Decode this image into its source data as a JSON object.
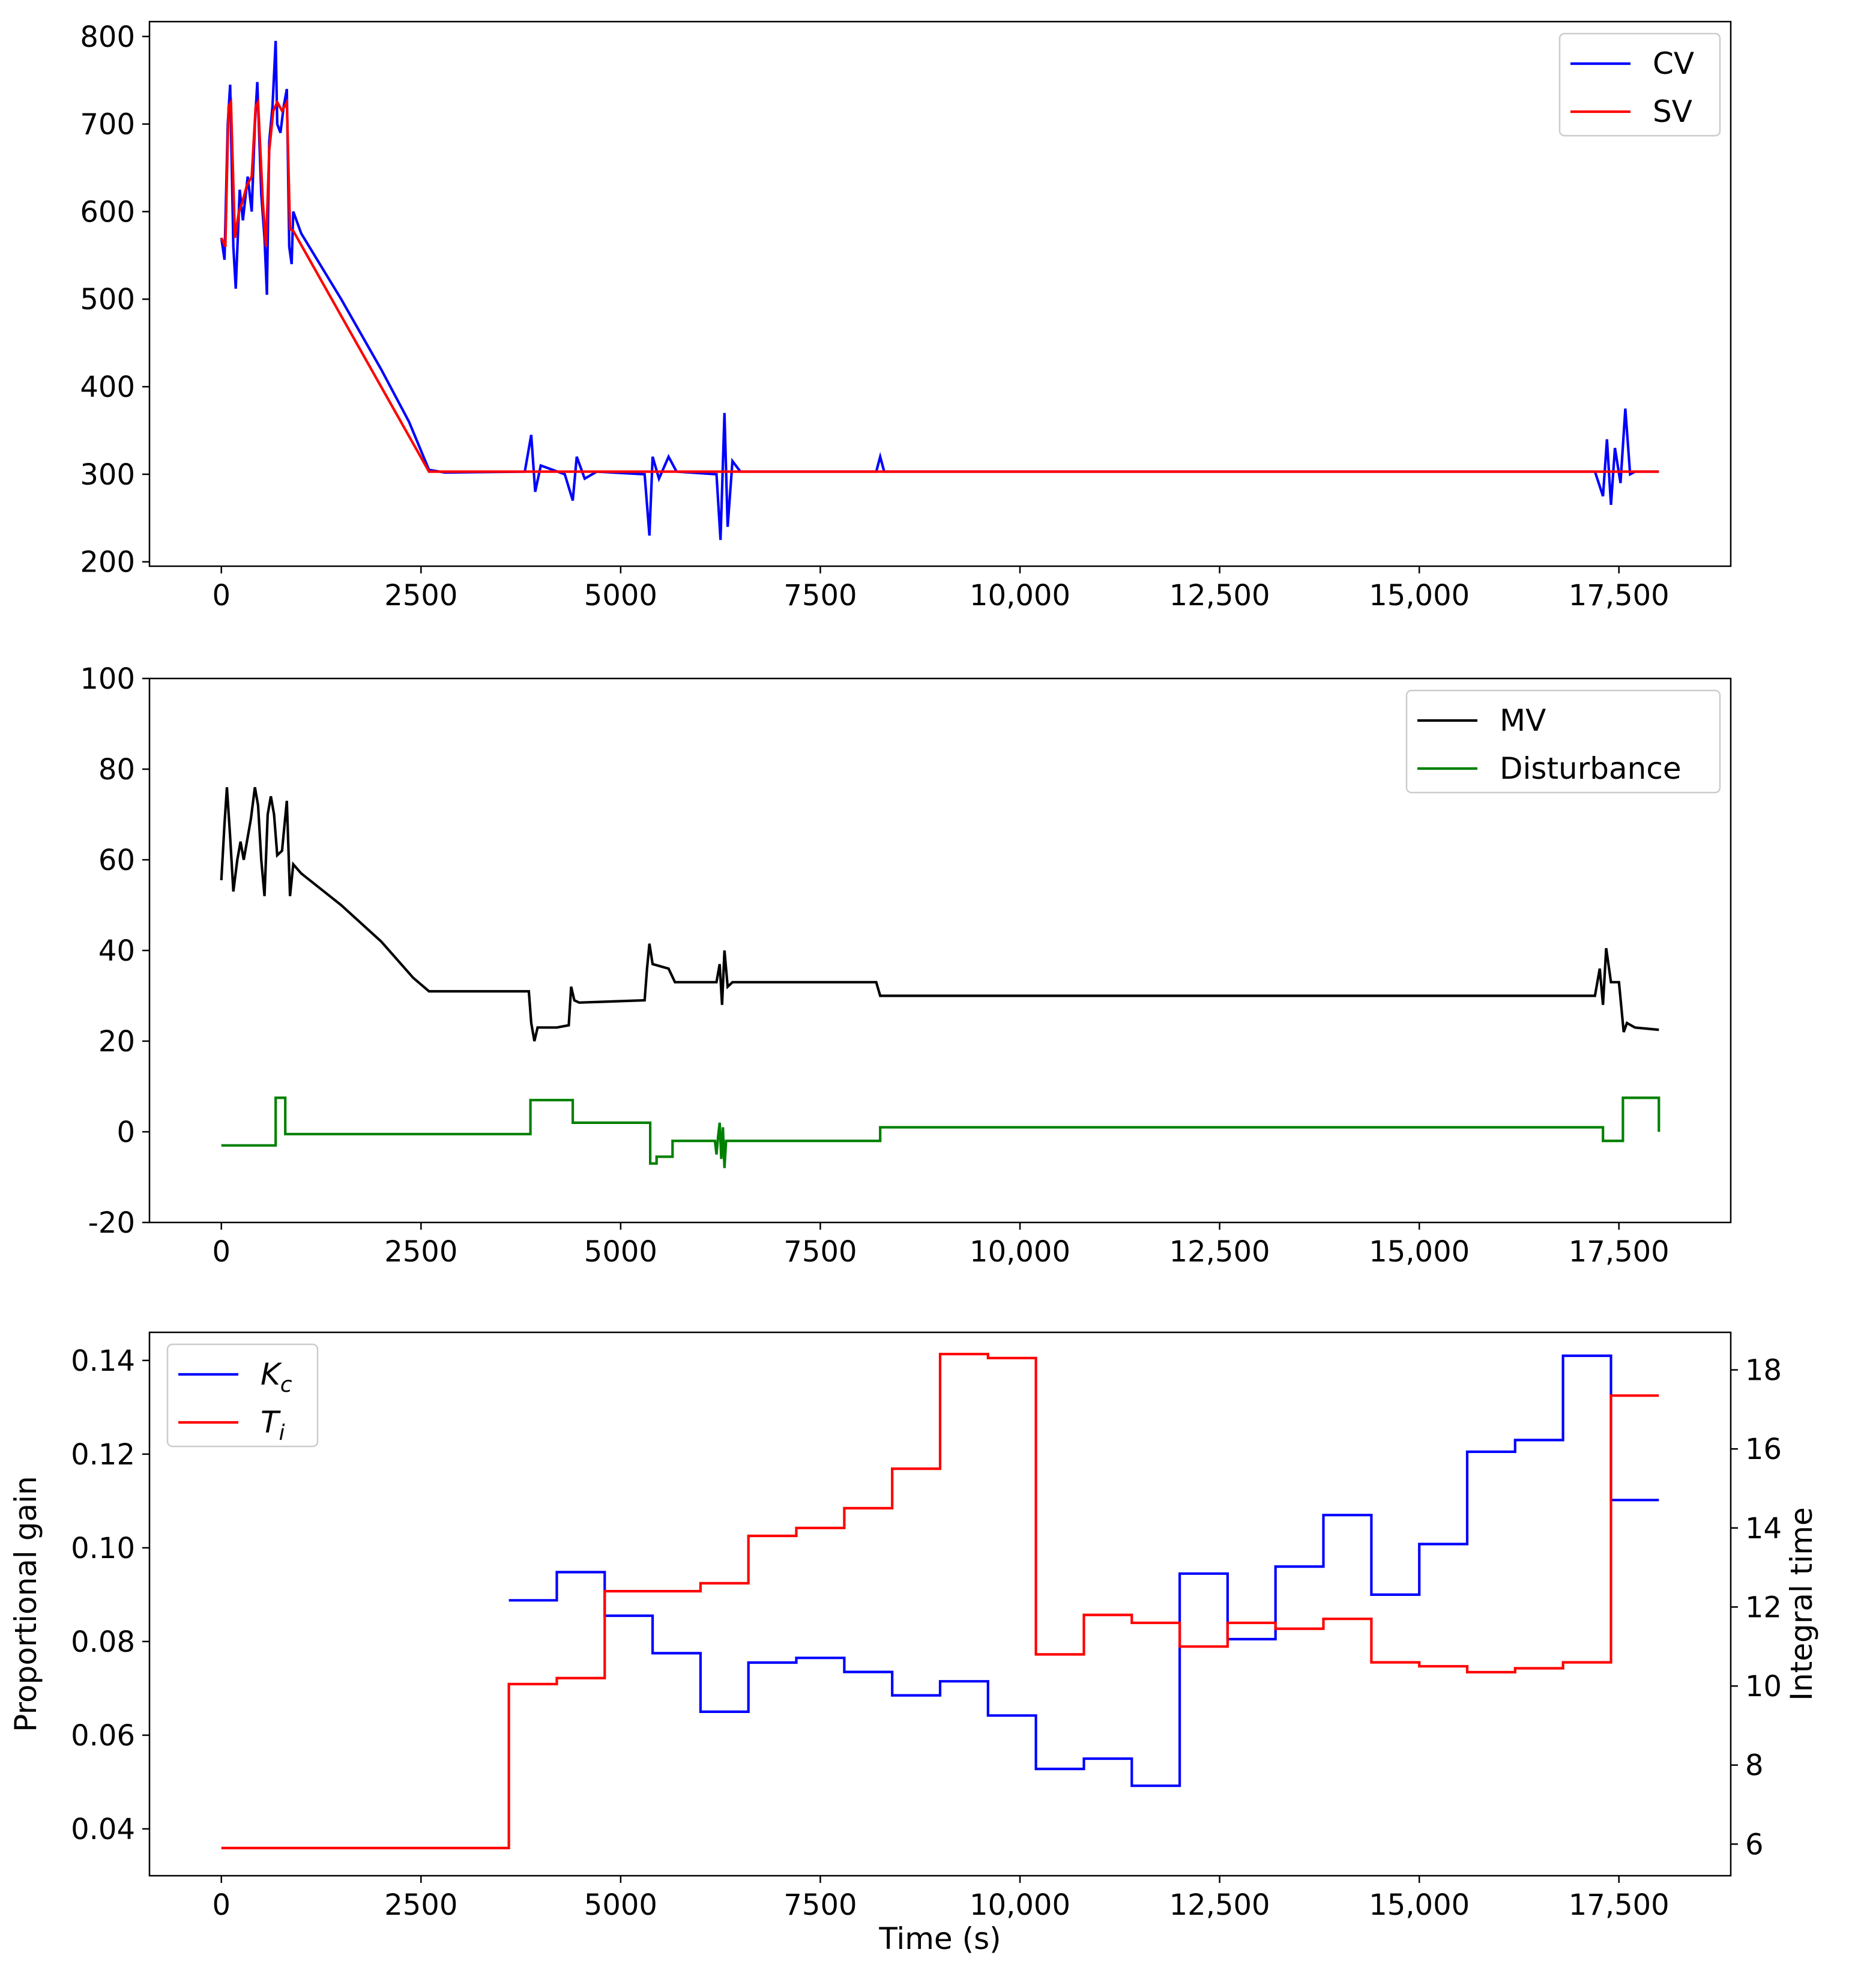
{
  "chart_data": [
    {
      "type": "line",
      "title": "",
      "xlabel": "",
      "ylabel": "",
      "xlim": [
        -900,
        18900
      ],
      "ylim": [
        195,
        817
      ],
      "x_ticks": [
        0,
        2500,
        5000,
        7500,
        10000,
        12500,
        15000,
        17500
      ],
      "x_tick_labels": [
        "0",
        "2500",
        "5000",
        "7500",
        "10,000",
        "12,500",
        "15,000",
        "17,500"
      ],
      "y_ticks": [
        200,
        300,
        400,
        500,
        600,
        700,
        800
      ],
      "y_tick_labels": [
        "200",
        "300",
        "400",
        "500",
        "600",
        "700",
        "800"
      ],
      "legend_position": "top-right",
      "series": [
        {
          "name": "CV",
          "color": "#0000ff",
          "points": [
            [
              0,
              570
            ],
            [
              40,
              545
            ],
            [
              80,
              700
            ],
            [
              110,
              745
            ],
            [
              150,
              560
            ],
            [
              180,
              512
            ],
            [
              230,
              625
            ],
            [
              270,
              590
            ],
            [
              330,
              640
            ],
            [
              380,
              600
            ],
            [
              420,
              700
            ],
            [
              450,
              748
            ],
            [
              500,
              620
            ],
            [
              540,
              570
            ],
            [
              570,
              505
            ],
            [
              600,
              680
            ],
            [
              640,
              720
            ],
            [
              680,
              795
            ],
            [
              700,
              700
            ],
            [
              740,
              690
            ],
            [
              780,
              720
            ],
            [
              820,
              740
            ],
            [
              850,
              560
            ],
            [
              880,
              540
            ],
            [
              900,
              600
            ],
            [
              1000,
              575
            ],
            [
              1500,
              500
            ],
            [
              2000,
              420
            ],
            [
              2350,
              360
            ],
            [
              2600,
              305
            ],
            [
              2800,
              302
            ],
            [
              3800,
              303
            ],
            [
              3880,
              345
            ],
            [
              3930,
              280
            ],
            [
              4000,
              310
            ],
            [
              4300,
              300
            ],
            [
              4400,
              270
            ],
            [
              4450,
              320
            ],
            [
              4550,
              295
            ],
            [
              4700,
              303
            ],
            [
              5300,
              300
            ],
            [
              5360,
              230
            ],
            [
              5400,
              320
            ],
            [
              5480,
              295
            ],
            [
              5600,
              320
            ],
            [
              5700,
              303
            ],
            [
              6200,
              300
            ],
            [
              6250,
              225
            ],
            [
              6300,
              370
            ],
            [
              6340,
              240
            ],
            [
              6400,
              315
            ],
            [
              6500,
              303
            ],
            [
              8200,
              303
            ],
            [
              8250,
              320
            ],
            [
              8300,
              303
            ],
            [
              17200,
              303
            ],
            [
              17300,
              275
            ],
            [
              17350,
              340
            ],
            [
              17400,
              265
            ],
            [
              17450,
              330
            ],
            [
              17520,
              290
            ],
            [
              17580,
              375
            ],
            [
              17640,
              300
            ],
            [
              17700,
              303
            ],
            [
              18000,
              303
            ]
          ]
        },
        {
          "name": "SV",
          "color": "#ff0000",
          "points": [
            [
              0,
              570
            ],
            [
              50,
              560
            ],
            [
              90,
              720
            ],
            [
              120,
              725
            ],
            [
              170,
              570
            ],
            [
              220,
              600
            ],
            [
              260,
              610
            ],
            [
              320,
              630
            ],
            [
              380,
              640
            ],
            [
              430,
              720
            ],
            [
              460,
              725
            ],
            [
              520,
              610
            ],
            [
              560,
              560
            ],
            [
              600,
              670
            ],
            [
              650,
              715
            ],
            [
              700,
              725
            ],
            [
              760,
              715
            ],
            [
              820,
              725
            ],
            [
              860,
              580
            ],
            [
              900,
              578
            ],
            [
              2600,
              303
            ],
            [
              18000,
              303
            ]
          ]
        }
      ]
    },
    {
      "type": "line",
      "title": "",
      "xlabel": "",
      "ylabel": "",
      "xlim": [
        -900,
        18900
      ],
      "ylim": [
        -20,
        100
      ],
      "x_ticks": [
        0,
        2500,
        5000,
        7500,
        10000,
        12500,
        15000,
        17500
      ],
      "x_tick_labels": [
        "0",
        "2500",
        "5000",
        "7500",
        "10,000",
        "12,500",
        "15,000",
        "17,500"
      ],
      "y_ticks": [
        -20,
        0,
        20,
        40,
        60,
        80,
        100
      ],
      "y_tick_labels": [
        "-20",
        "0",
        "20",
        "40",
        "60",
        "80",
        "100"
      ],
      "legend_position": "top-right",
      "series": [
        {
          "name": "MV",
          "color": "#000000",
          "points": [
            [
              0,
              55.5
            ],
            [
              40,
              68
            ],
            [
              70,
              76
            ],
            [
              110,
              65
            ],
            [
              150,
              53
            ],
            [
              200,
              60
            ],
            [
              240,
              64
            ],
            [
              280,
              60
            ],
            [
              320,
              64
            ],
            [
              370,
              69
            ],
            [
              420,
              76
            ],
            [
              460,
              72
            ],
            [
              500,
              60
            ],
            [
              540,
              52
            ],
            [
              580,
              70
            ],
            [
              620,
              74
            ],
            [
              660,
              70
            ],
            [
              700,
              61
            ],
            [
              760,
              62
            ],
            [
              820,
              73
            ],
            [
              860,
              52
            ],
            [
              900,
              59
            ],
            [
              1000,
              57
            ],
            [
              1500,
              50
            ],
            [
              2000,
              42
            ],
            [
              2400,
              34
            ],
            [
              2600,
              31
            ],
            [
              3850,
              31
            ],
            [
              3880,
              24
            ],
            [
              3920,
              20
            ],
            [
              3960,
              23
            ],
            [
              4000,
              23
            ],
            [
              4200,
              23
            ],
            [
              4350,
              23.5
            ],
            [
              4380,
              32
            ],
            [
              4420,
              29
            ],
            [
              4480,
              28.5
            ],
            [
              5300,
              29
            ],
            [
              5330,
              36
            ],
            [
              5360,
              41.5
            ],
            [
              5400,
              37
            ],
            [
              5600,
              36
            ],
            [
              5680,
              33
            ],
            [
              6000,
              33
            ],
            [
              6200,
              33
            ],
            [
              6240,
              37
            ],
            [
              6270,
              28
            ],
            [
              6300,
              40
            ],
            [
              6340,
              32
            ],
            [
              6400,
              33
            ],
            [
              8200,
              33
            ],
            [
              8250,
              30
            ],
            [
              17200,
              30
            ],
            [
              17260,
              36
            ],
            [
              17300,
              28
            ],
            [
              17340,
              40.5
            ],
            [
              17400,
              33
            ],
            [
              17500,
              33
            ],
            [
              17560,
              22
            ],
            [
              17600,
              24
            ],
            [
              17700,
              23
            ],
            [
              18000,
              22.5
            ]
          ]
        },
        {
          "name": "Disturbance",
          "color": "#008000",
          "points": [
            [
              0,
              -3
            ],
            [
              680,
              -3
            ],
            [
              680,
              7.5
            ],
            [
              800,
              7.5
            ],
            [
              800,
              -0.5
            ],
            [
              3870,
              -0.5
            ],
            [
              3870,
              7
            ],
            [
              4400,
              7
            ],
            [
              4400,
              2
            ],
            [
              5370,
              2
            ],
            [
              5370,
              -7
            ],
            [
              5450,
              -7
            ],
            [
              5450,
              -5.5
            ],
            [
              5650,
              -5.5
            ],
            [
              5650,
              -2
            ],
            [
              6180,
              -2
            ],
            [
              6200,
              -5
            ],
            [
              6220,
              -1
            ],
            [
              6240,
              2
            ],
            [
              6260,
              -6
            ],
            [
              6280,
              1
            ],
            [
              6300,
              -8
            ],
            [
              6320,
              -2
            ],
            [
              8250,
              -2
            ],
            [
              8250,
              1
            ],
            [
              17300,
              1
            ],
            [
              17300,
              -2
            ],
            [
              17550,
              -2
            ],
            [
              17550,
              7.5
            ],
            [
              18000,
              7.5
            ],
            [
              18000,
              0
            ]
          ]
        }
      ]
    },
    {
      "type": "line",
      "title": "",
      "xlabel": "Time (s)",
      "ylabel": "Proportional gain",
      "y2label": "Integral time",
      "xlim": [
        -900,
        18900
      ],
      "ylim": [
        0.03,
        0.146
      ],
      "y2lim": [
        5.2,
        18.95
      ],
      "x_ticks": [
        0,
        2500,
        5000,
        7500,
        10000,
        12500,
        15000,
        17500
      ],
      "x_tick_labels": [
        "0",
        "2500",
        "5000",
        "7500",
        "10,000",
        "12,500",
        "15,000",
        "17,500"
      ],
      "y_ticks": [
        0.04,
        0.06,
        0.08,
        0.1,
        0.12,
        0.14
      ],
      "y_tick_labels": [
        "0.04",
        "0.06",
        "0.08",
        "0.10",
        "0.12",
        "0.14"
      ],
      "y2_ticks": [
        6,
        8,
        10,
        12,
        14,
        16,
        18
      ],
      "y2_tick_labels": [
        "6",
        "8",
        "10",
        "12",
        "14",
        "16",
        "18"
      ],
      "legend_position": "top-left",
      "series": [
        {
          "name": "Kc",
          "legend_base": "K",
          "legend_sub": "c",
          "axis": "left",
          "color": "#0000ff",
          "steps": [
            [
              3600,
              4200,
              0.0888
            ],
            [
              4200,
              4800,
              0.0948
            ],
            [
              4800,
              5400,
              0.0855
            ],
            [
              5400,
              6000,
              0.0775
            ],
            [
              6000,
              6600,
              0.065
            ],
            [
              6600,
              7200,
              0.0755
            ],
            [
              7200,
              7800,
              0.0765
            ],
            [
              7800,
              8400,
              0.0735
            ],
            [
              8400,
              9000,
              0.0685
            ],
            [
              9000,
              9600,
              0.0715
            ],
            [
              9600,
              10200,
              0.0642
            ],
            [
              10200,
              10800,
              0.0528
            ],
            [
              10800,
              11400,
              0.055
            ],
            [
              11400,
              12000,
              0.0492
            ],
            [
              12000,
              12600,
              0.0945
            ],
            [
              12600,
              13200,
              0.0805
            ],
            [
              13200,
              13800,
              0.096
            ],
            [
              13800,
              14400,
              0.107
            ],
            [
              14400,
              15000,
              0.09
            ],
            [
              15000,
              15600,
              0.1008
            ],
            [
              15600,
              16200,
              0.1205
            ],
            [
              16200,
              16800,
              0.123
            ],
            [
              16800,
              17400,
              0.141
            ],
            [
              17400,
              18000,
              0.1102
            ]
          ]
        },
        {
          "name": "Ti",
          "legend_base": "T",
          "legend_sub": "i",
          "axis": "right",
          "color": "#ff0000",
          "steps": [
            [
              0,
              3600,
              5.9
            ],
            [
              3600,
              4200,
              10.05
            ],
            [
              4200,
              4800,
              10.2
            ],
            [
              4800,
              5400,
              12.4
            ],
            [
              5400,
              6000,
              12.4
            ],
            [
              6000,
              6600,
              12.6
            ],
            [
              6600,
              7200,
              13.8
            ],
            [
              7200,
              7800,
              14.0
            ],
            [
              7800,
              8400,
              14.5
            ],
            [
              8400,
              9000,
              15.5
            ],
            [
              9000,
              9600,
              18.4
            ],
            [
              9600,
              10200,
              18.3
            ],
            [
              10200,
              10800,
              10.8
            ],
            [
              10800,
              11400,
              11.8
            ],
            [
              11400,
              12000,
              11.6
            ],
            [
              12000,
              12600,
              11.0
            ],
            [
              12600,
              13200,
              11.6
            ],
            [
              13200,
              13800,
              11.45
            ],
            [
              13800,
              14400,
              11.7
            ],
            [
              14400,
              15000,
              10.6
            ],
            [
              15000,
              15600,
              10.5
            ],
            [
              15600,
              16200,
              10.35
            ],
            [
              16200,
              16800,
              10.45
            ],
            [
              16800,
              17400,
              10.6
            ],
            [
              17400,
              18000,
              17.35
            ]
          ]
        }
      ]
    }
  ]
}
